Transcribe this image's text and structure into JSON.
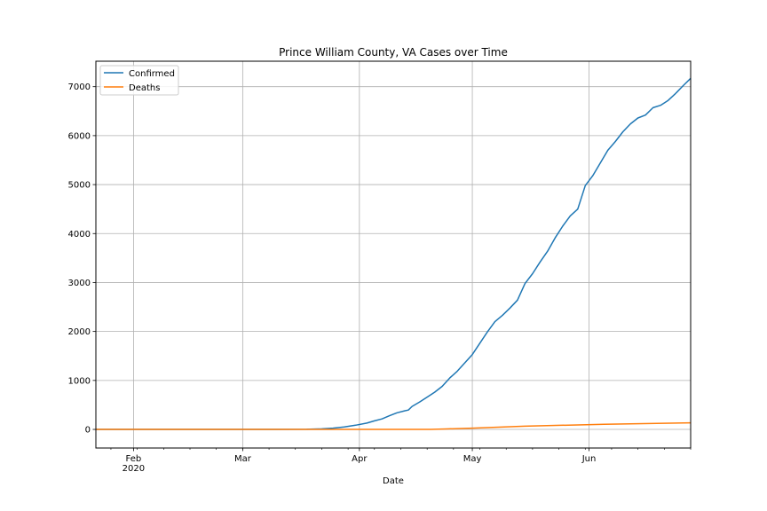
{
  "chart_data": {
    "type": "line",
    "title": "Prince William County, VA Cases over Time",
    "xlabel": "Date",
    "ylabel": "",
    "x_type": "date",
    "xlim": [
      "2020-01-22",
      "2020-06-28"
    ],
    "ylim": [
      -380,
      7520
    ],
    "grid": true,
    "legend_position": "upper-left",
    "x_ticks": [
      {
        "date": "2020-02-01",
        "label": "Feb",
        "sublabel": "2020"
      },
      {
        "date": "2020-03-01",
        "label": "Mar",
        "sublabel": ""
      },
      {
        "date": "2020-04-01",
        "label": "Apr",
        "sublabel": ""
      },
      {
        "date": "2020-05-01",
        "label": "May",
        "sublabel": ""
      },
      {
        "date": "2020-06-01",
        "label": "Jun",
        "sublabel": ""
      }
    ],
    "y_ticks": [
      0,
      1000,
      2000,
      3000,
      4000,
      5000,
      6000,
      7000
    ],
    "series": [
      {
        "name": "Confirmed",
        "color": "#1f77b4",
        "points": [
          [
            "2020-01-22",
            0
          ],
          [
            "2020-03-10",
            0
          ],
          [
            "2020-03-18",
            2
          ],
          [
            "2020-03-22",
            12
          ],
          [
            "2020-03-25",
            25
          ],
          [
            "2020-03-28",
            50
          ],
          [
            "2020-03-31",
            85
          ],
          [
            "2020-04-03",
            130
          ],
          [
            "2020-04-05",
            175
          ],
          [
            "2020-04-07",
            215
          ],
          [
            "2020-04-09",
            280
          ],
          [
            "2020-04-11",
            340
          ],
          [
            "2020-04-13",
            380
          ],
          [
            "2020-04-14",
            395
          ],
          [
            "2020-04-15",
            470
          ],
          [
            "2020-04-17",
            560
          ],
          [
            "2020-04-19",
            660
          ],
          [
            "2020-04-21",
            760
          ],
          [
            "2020-04-23",
            880
          ],
          [
            "2020-04-25",
            1050
          ],
          [
            "2020-04-27",
            1190
          ],
          [
            "2020-04-29",
            1360
          ],
          [
            "2020-05-01",
            1530
          ],
          [
            "2020-05-03",
            1760
          ],
          [
            "2020-05-05",
            1990
          ],
          [
            "2020-05-07",
            2200
          ],
          [
            "2020-05-09",
            2330
          ],
          [
            "2020-05-11",
            2480
          ],
          [
            "2020-05-13",
            2640
          ],
          [
            "2020-05-15",
            2980
          ],
          [
            "2020-05-17",
            3180
          ],
          [
            "2020-05-19",
            3420
          ],
          [
            "2020-05-21",
            3640
          ],
          [
            "2020-05-23",
            3910
          ],
          [
            "2020-05-25",
            4150
          ],
          [
            "2020-05-27",
            4360
          ],
          [
            "2020-05-29",
            4500
          ],
          [
            "2020-05-31",
            4980
          ],
          [
            "2020-06-02",
            5180
          ],
          [
            "2020-06-04",
            5440
          ],
          [
            "2020-06-06",
            5700
          ],
          [
            "2020-06-08",
            5880
          ],
          [
            "2020-06-10",
            6080
          ],
          [
            "2020-06-12",
            6240
          ],
          [
            "2020-06-14",
            6360
          ],
          [
            "2020-06-16",
            6420
          ],
          [
            "2020-06-18",
            6570
          ],
          [
            "2020-06-20",
            6620
          ],
          [
            "2020-06-22",
            6720
          ],
          [
            "2020-06-24",
            6860
          ],
          [
            "2020-06-26",
            7020
          ],
          [
            "2020-06-28",
            7170
          ]
        ]
      },
      {
        "name": "Deaths",
        "color": "#ff7f0e",
        "points": [
          [
            "2020-01-22",
            0
          ],
          [
            "2020-04-20",
            0
          ],
          [
            "2020-04-24",
            10
          ],
          [
            "2020-05-01",
            25
          ],
          [
            "2020-05-08",
            45
          ],
          [
            "2020-05-15",
            65
          ],
          [
            "2020-05-22",
            80
          ],
          [
            "2020-05-29",
            92
          ],
          [
            "2020-06-05",
            105
          ],
          [
            "2020-06-12",
            115
          ],
          [
            "2020-06-19",
            122
          ],
          [
            "2020-06-28",
            135
          ]
        ]
      }
    ]
  }
}
